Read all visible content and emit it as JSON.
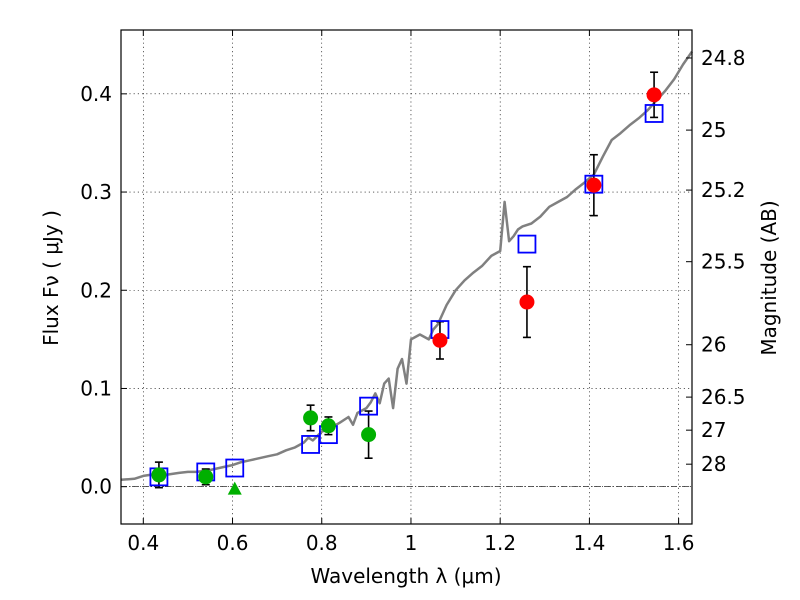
{
  "chart_data": {
    "type": "scatter",
    "xlabel": "Wavelength  λ (μm)",
    "ylabel": "Flux  Fν  ( μJy )",
    "ylabel_right": "Magnitude (AB)",
    "xlim": [
      0.35,
      1.63
    ],
    "ylim": [
      -0.038,
      0.465
    ],
    "x_ticks": [
      0.4,
      0.6,
      0.8,
      1.0,
      1.2,
      1.4,
      1.6
    ],
    "x_tick_labels": [
      "0.4",
      "0.6",
      "0.8",
      "1",
      "1.2",
      "1.4",
      "1.6"
    ],
    "y_ticks": [
      0.0,
      0.1,
      0.2,
      0.3,
      0.4
    ],
    "y_tick_labels": [
      "0.0",
      "0.1",
      "0.2",
      "0.3",
      "0.4"
    ],
    "right_ticks": [
      {
        "label": "24.8",
        "mag": 24.8
      },
      {
        "label": "25",
        "mag": 25.0
      },
      {
        "label": "25.2",
        "mag": 25.2
      },
      {
        "label": "25.5",
        "mag": 25.5
      },
      {
        "label": "26",
        "mag": 26.0
      },
      {
        "label": "26.5",
        "mag": 26.5
      },
      {
        "label": "27",
        "mag": 27.0
      },
      {
        "label": "28",
        "mag": 28.0
      }
    ],
    "grid": true,
    "colors": {
      "model": "#808080",
      "model_photometry": "#0000ff",
      "green_points": "#00b000",
      "red_points": "#ff0000",
      "error_bars": "#000000"
    },
    "series": [
      {
        "name": "model spectrum",
        "type": "line",
        "x": [
          0.35,
          0.38,
          0.4,
          0.43,
          0.45,
          0.48,
          0.5,
          0.52,
          0.55,
          0.58,
          0.6,
          0.62,
          0.64,
          0.66,
          0.68,
          0.7,
          0.72,
          0.74,
          0.76,
          0.77,
          0.78,
          0.8,
          0.82,
          0.84,
          0.86,
          0.87,
          0.88,
          0.9,
          0.91,
          0.92,
          0.93,
          0.94,
          0.95,
          0.96,
          0.97,
          0.98,
          0.99,
          1.0,
          1.02,
          1.04,
          1.05,
          1.06,
          1.08,
          1.1,
          1.12,
          1.14,
          1.16,
          1.18,
          1.2,
          1.21,
          1.22,
          1.23,
          1.24,
          1.25,
          1.27,
          1.29,
          1.31,
          1.33,
          1.35,
          1.37,
          1.39,
          1.41,
          1.43,
          1.45,
          1.47,
          1.49,
          1.51,
          1.53,
          1.55,
          1.57,
          1.59,
          1.61,
          1.63
        ],
        "y": [
          0.007,
          0.008,
          0.011,
          0.013,
          0.012,
          0.014,
          0.015,
          0.015,
          0.017,
          0.02,
          0.022,
          0.025,
          0.027,
          0.029,
          0.031,
          0.033,
          0.037,
          0.04,
          0.045,
          0.05,
          0.047,
          0.056,
          0.06,
          0.065,
          0.071,
          0.063,
          0.075,
          0.08,
          0.086,
          0.095,
          0.085,
          0.105,
          0.11,
          0.08,
          0.12,
          0.13,
          0.105,
          0.15,
          0.155,
          0.15,
          0.16,
          0.165,
          0.185,
          0.2,
          0.21,
          0.218,
          0.225,
          0.235,
          0.24,
          0.29,
          0.25,
          0.255,
          0.262,
          0.265,
          0.268,
          0.275,
          0.285,
          0.29,
          0.295,
          0.303,
          0.31,
          0.318,
          0.336,
          0.353,
          0.36,
          0.368,
          0.375,
          0.383,
          0.393,
          0.403,
          0.415,
          0.43,
          0.443
        ]
      },
      {
        "name": "model photometry",
        "type": "scatter",
        "marker": "open-square",
        "x": [
          0.435,
          0.54,
          0.605,
          0.775,
          0.815,
          0.905,
          1.065,
          1.26,
          1.41,
          1.545
        ],
        "y": [
          0.01,
          0.015,
          0.019,
          0.043,
          0.053,
          0.082,
          0.16,
          0.247,
          0.308,
          0.38
        ]
      },
      {
        "name": "observed green",
        "type": "scatter",
        "marker": "filled-circle",
        "x": [
          0.435,
          0.54,
          0.775,
          0.815,
          0.905
        ],
        "y": [
          0.012,
          0.01,
          0.07,
          0.062,
          0.053
        ],
        "yerr": [
          0.013,
          0.008,
          0.013,
          0.009,
          0.024
        ]
      },
      {
        "name": "upper limit green",
        "type": "scatter",
        "marker": "filled-triangle",
        "x": [
          0.605
        ],
        "y": [
          -0.002
        ]
      },
      {
        "name": "observed red",
        "type": "scatter",
        "marker": "filled-circle",
        "x": [
          1.065,
          1.26,
          1.41,
          1.545
        ],
        "y": [
          0.149,
          0.188,
          0.307,
          0.399
        ],
        "yerr": [
          0.019,
          0.036,
          0.031,
          0.023
        ]
      }
    ]
  }
}
